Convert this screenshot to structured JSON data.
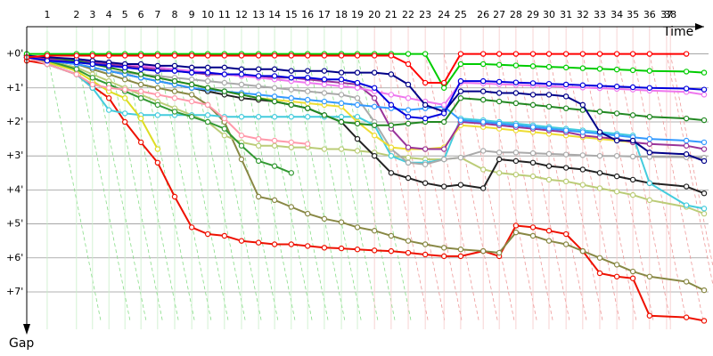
{
  "chart_data": {
    "type": "line",
    "x_label": "Time",
    "y_label": "Gap",
    "grid": true,
    "markers": true,
    "xlim": [
      0,
      20
    ],
    "ylim": [
      -0.8,
      8.1
    ],
    "y_inverted": true,
    "xticks": [
      {
        "value": 0.6,
        "label": "1"
      },
      {
        "value": 1.46,
        "label": "2"
      },
      {
        "value": 1.93,
        "label": "3"
      },
      {
        "value": 2.41,
        "label": "4"
      },
      {
        "value": 2.88,
        "label": "5"
      },
      {
        "value": 3.35,
        "label": "6"
      },
      {
        "value": 3.84,
        "label": "7"
      },
      {
        "value": 4.34,
        "label": "8"
      },
      {
        "value": 4.84,
        "label": "9"
      },
      {
        "value": 5.31,
        "label": "10"
      },
      {
        "value": 5.8,
        "label": "11"
      },
      {
        "value": 6.3,
        "label": "12"
      },
      {
        "value": 6.8,
        "label": "13"
      },
      {
        "value": 7.27,
        "label": "14"
      },
      {
        "value": 7.76,
        "label": "15"
      },
      {
        "value": 8.24,
        "label": "16"
      },
      {
        "value": 8.73,
        "label": "17"
      },
      {
        "value": 9.23,
        "label": "18"
      },
      {
        "value": 9.7,
        "label": "19"
      },
      {
        "value": 10.2,
        "label": "20"
      },
      {
        "value": 10.69,
        "label": "21"
      },
      {
        "value": 11.19,
        "label": "22"
      },
      {
        "value": 11.69,
        "label": "23"
      },
      {
        "value": 12.24,
        "label": "24"
      },
      {
        "value": 12.73,
        "label": "25"
      },
      {
        "value": 13.39,
        "label": "26"
      },
      {
        "value": 13.86,
        "label": "27"
      },
      {
        "value": 14.35,
        "label": "28"
      },
      {
        "value": 14.85,
        "label": "29"
      },
      {
        "value": 15.32,
        "label": "30"
      },
      {
        "value": 15.82,
        "label": "31"
      },
      {
        "value": 16.31,
        "label": "32"
      },
      {
        "value": 16.81,
        "label": "33"
      },
      {
        "value": 17.31,
        "label": "34"
      },
      {
        "value": 17.78,
        "label": "35"
      },
      {
        "value": 18.27,
        "label": "36"
      },
      {
        "value": 18.77,
        "label": "37"
      },
      {
        "value": 18.88,
        "label": "38"
      }
    ],
    "yticks": [
      {
        "value": 0,
        "label": "+0'"
      },
      {
        "value": 1,
        "label": "+1'"
      },
      {
        "value": 2,
        "label": "+2'"
      },
      {
        "value": 3,
        "label": "+3'"
      },
      {
        "value": 4,
        "label": "+4'"
      },
      {
        "value": 5,
        "label": "+5'"
      },
      {
        "value": 6,
        "label": "+6'"
      },
      {
        "value": 7,
        "label": "+7'"
      }
    ],
    "x": [
      0,
      0.6,
      1.46,
      1.93,
      2.41,
      2.88,
      3.35,
      3.84,
      4.34,
      4.84,
      5.31,
      5.8,
      6.3,
      6.8,
      7.27,
      7.76,
      8.24,
      8.73,
      9.23,
      9.7,
      10.2,
      10.69,
      11.19,
      11.69,
      12.24,
      12.73,
      13.39,
      13.86,
      14.35,
      14.85,
      15.32,
      15.82,
      16.31,
      16.81,
      17.31,
      17.78,
      18.27,
      19.35,
      19.87
    ],
    "series": [
      {
        "color": "#ee1100",
        "values": [
          0.2,
          0.3,
          0.6,
          0.95,
          1.3,
          2.0,
          2.6,
          3.2,
          4.2,
          5.1,
          5.3,
          5.35,
          5.5,
          5.55,
          5.6,
          5.6,
          5.65,
          5.7,
          5.72,
          5.75,
          5.78,
          5.8,
          5.85,
          5.9,
          5.95,
          5.95,
          5.8,
          5.95,
          5.05,
          5.1,
          5.2,
          5.3,
          5.8,
          6.45,
          6.55,
          6.6,
          7.7,
          7.75,
          7.85
        ]
      },
      {
        "color": "#888844",
        "values": [
          0.1,
          0.2,
          0.3,
          0.45,
          0.6,
          0.75,
          0.9,
          1.0,
          1.1,
          1.2,
          1.5,
          2.0,
          3.1,
          4.2,
          4.3,
          4.5,
          4.7,
          4.85,
          4.95,
          5.1,
          5.2,
          5.35,
          5.5,
          5.6,
          5.7,
          5.75,
          5.8,
          5.85,
          5.25,
          5.35,
          5.5,
          5.6,
          5.8,
          6.0,
          6.2,
          6.4,
          6.55,
          6.7,
          6.95
        ]
      },
      {
        "color": "#bbcc77",
        "values": [
          0.1,
          0.2,
          0.4,
          0.6,
          0.8,
          1.0,
          1.2,
          1.4,
          1.6,
          1.8,
          2.0,
          2.4,
          2.6,
          2.7,
          2.7,
          2.75,
          2.75,
          2.8,
          2.8,
          2.85,
          2.9,
          3.0,
          3.05,
          3.1,
          3.1,
          3.05,
          3.4,
          3.5,
          3.55,
          3.6,
          3.7,
          3.75,
          3.85,
          3.95,
          4.05,
          4.15,
          4.3,
          4.5,
          4.7
        ]
      },
      {
        "color": "#222222",
        "values": [
          0.1,
          0.2,
          0.3,
          0.4,
          0.5,
          0.6,
          0.7,
          0.8,
          0.9,
          1.0,
          1.1,
          1.2,
          1.3,
          1.35,
          1.4,
          1.5,
          1.6,
          1.8,
          2.0,
          2.5,
          3.0,
          3.5,
          3.65,
          3.8,
          3.9,
          3.85,
          3.95,
          3.1,
          3.15,
          3.2,
          3.3,
          3.35,
          3.4,
          3.5,
          3.6,
          3.7,
          3.8,
          3.9,
          4.1
        ]
      },
      {
        "color": "#222222",
        "values": [
          0.1,
          0.3,
          0.6,
          1.0,
          null,
          null,
          null,
          null,
          null,
          null,
          null,
          null,
          null,
          null,
          null,
          null,
          null,
          null,
          null,
          null,
          null,
          null,
          null,
          null,
          null,
          null,
          null,
          null,
          null,
          null,
          null,
          null,
          null,
          null,
          null,
          null,
          null,
          null,
          null
        ]
      },
      {
        "color": "#44ccdd",
        "values": [
          0.1,
          0.3,
          0.6,
          1.0,
          1.65,
          1.75,
          1.8,
          1.8,
          1.8,
          1.8,
          1.8,
          1.85,
          1.85,
          1.85,
          1.85,
          1.85,
          1.85,
          1.85,
          1.85,
          1.85,
          2.1,
          3.0,
          3.2,
          3.2,
          3.1,
          1.9,
          1.95,
          2.0,
          2.05,
          2.1,
          2.15,
          2.2,
          2.25,
          2.3,
          2.35,
          2.4,
          3.8,
          4.45,
          4.55
        ]
      },
      {
        "color": "#aaaaaa",
        "values": [
          0.05,
          0.15,
          0.3,
          0.4,
          0.5,
          0.55,
          0.6,
          0.65,
          0.7,
          0.75,
          0.8,
          0.85,
          0.9,
          0.95,
          1.0,
          1.05,
          1.1,
          1.15,
          1.2,
          1.3,
          2.0,
          2.8,
          3.2,
          3.25,
          3.1,
          3.05,
          2.85,
          2.9,
          2.9,
          2.92,
          2.94,
          2.96,
          2.98,
          3.0,
          3.0,
          3.02,
          3.03,
          3.04,
          3.05
        ]
      },
      {
        "color": "#eedd33",
        "values": [
          0.05,
          0.1,
          0.2,
          0.3,
          0.4,
          0.5,
          0.6,
          0.7,
          0.8,
          0.9,
          1.0,
          1.1,
          1.2,
          1.3,
          1.35,
          1.4,
          1.45,
          1.5,
          1.55,
          2.0,
          2.4,
          2.75,
          2.8,
          2.8,
          2.75,
          2.1,
          2.15,
          2.2,
          2.25,
          2.3,
          2.35,
          2.4,
          2.45,
          2.5,
          2.55,
          2.6,
          null,
          null,
          null
        ]
      },
      {
        "color": "#dddd22",
        "values": [
          0.1,
          0.25,
          0.5,
          0.8,
          1.1,
          1.3,
          1.9,
          2.8,
          null,
          null,
          null,
          null,
          null,
          null,
          null,
          null,
          null,
          null,
          null,
          null,
          null,
          null,
          null,
          null,
          null,
          null,
          null,
          null,
          null,
          null,
          null,
          null,
          null,
          null,
          null,
          null,
          null,
          null,
          null
        ]
      },
      {
        "color": "#339933",
        "values": [
          0.1,
          0.2,
          0.45,
          0.7,
          0.9,
          1.1,
          1.3,
          1.5,
          1.7,
          1.85,
          2.0,
          2.2,
          2.7,
          3.15,
          3.3,
          3.5,
          null,
          null,
          null,
          null,
          null,
          null,
          null,
          null,
          null,
          null,
          null,
          null,
          null,
          null,
          null,
          null,
          null,
          null,
          null,
          null,
          null,
          null,
          null
        ]
      },
      {
        "color": "#ff99aa",
        "values": [
          0.1,
          0.3,
          0.6,
          0.9,
          1.0,
          1.05,
          1.1,
          1.2,
          1.3,
          1.4,
          1.5,
          1.9,
          2.4,
          2.5,
          2.55,
          2.6,
          2.65,
          null,
          null,
          null,
          null,
          null,
          null,
          null,
          null,
          null,
          null,
          null,
          null,
          null,
          null,
          null,
          null,
          null,
          null,
          null,
          null,
          null,
          null
        ]
      },
      {
        "color": "#993399",
        "values": [
          0.1,
          0.15,
          0.2,
          0.25,
          0.3,
          0.35,
          0.4,
          0.45,
          0.5,
          0.55,
          0.6,
          0.6,
          0.65,
          0.65,
          0.7,
          0.7,
          0.75,
          0.8,
          0.85,
          0.9,
          1.3,
          2.2,
          2.75,
          2.8,
          2.8,
          2.0,
          2.05,
          2.1,
          2.15,
          2.2,
          2.25,
          2.3,
          2.4,
          2.45,
          2.5,
          2.6,
          2.65,
          2.7,
          2.8
        ]
      },
      {
        "color": "#3399ff",
        "values": [
          0.1,
          0.2,
          0.3,
          0.4,
          0.5,
          0.6,
          0.7,
          0.8,
          0.9,
          1.0,
          1.05,
          1.1,
          1.15,
          1.2,
          1.25,
          1.3,
          1.35,
          1.4,
          1.45,
          1.5,
          1.55,
          1.6,
          1.65,
          1.6,
          1.55,
          1.95,
          2.0,
          2.05,
          2.1,
          2.15,
          2.2,
          2.25,
          2.3,
          2.35,
          2.4,
          2.45,
          2.5,
          2.55,
          2.6
        ]
      },
      {
        "color": "#228822",
        "values": [
          0.05,
          0.1,
          0.2,
          0.3,
          0.4,
          0.5,
          0.6,
          0.7,
          0.8,
          0.9,
          1.0,
          1.1,
          1.2,
          1.3,
          1.4,
          1.5,
          1.6,
          1.8,
          2.0,
          2.05,
          2.1,
          2.1,
          2.05,
          2.0,
          2.0,
          1.3,
          1.35,
          1.4,
          1.45,
          1.5,
          1.55,
          1.6,
          1.65,
          1.7,
          1.75,
          1.8,
          1.85,
          1.9,
          1.95
        ]
      },
      {
        "color": "#ee77ee",
        "values": [
          0.05,
          0.1,
          0.15,
          0.2,
          0.25,
          0.3,
          0.35,
          0.4,
          0.45,
          0.5,
          0.55,
          0.6,
          0.65,
          0.7,
          0.75,
          0.8,
          0.85,
          0.9,
          0.95,
          1.0,
          1.1,
          1.2,
          1.3,
          1.4,
          1.5,
          0.85,
          0.87,
          0.89,
          0.91,
          0.93,
          0.95,
          0.97,
          0.99,
          1.01,
          1.03,
          1.05,
          1.08,
          1.12,
          1.2
        ]
      },
      {
        "color": "#000088",
        "values": [
          0.05,
          0.1,
          0.15,
          0.2,
          0.25,
          0.3,
          0.3,
          0.35,
          0.35,
          0.4,
          0.4,
          0.4,
          0.45,
          0.45,
          0.45,
          0.5,
          0.5,
          0.5,
          0.55,
          0.55,
          0.55,
          0.6,
          0.9,
          1.5,
          1.7,
          1.1,
          1.1,
          1.15,
          1.15,
          1.2,
          1.2,
          1.25,
          1.5,
          2.3,
          2.55,
          2.55,
          2.9,
          2.95,
          3.15
        ]
      },
      {
        "color": "#0000dd",
        "values": [
          0.1,
          0.2,
          0.25,
          0.3,
          0.35,
          0.4,
          0.45,
          0.5,
          0.5,
          0.55,
          0.55,
          0.6,
          0.6,
          0.65,
          0.65,
          0.7,
          0.7,
          0.75,
          0.75,
          0.85,
          1.0,
          1.5,
          1.85,
          1.9,
          1.75,
          0.8,
          0.8,
          0.82,
          0.84,
          0.86,
          0.88,
          0.9,
          0.92,
          0.94,
          0.96,
          0.98,
          1.0,
          1.02,
          1.05
        ]
      },
      {
        "color": "#00cc00",
        "values": [
          0,
          0,
          0,
          0,
          0,
          0,
          0,
          0,
          0,
          0,
          0,
          0,
          0,
          0,
          0,
          0,
          0,
          0,
          0,
          0,
          0,
          0,
          0,
          0,
          1.0,
          0.3,
          0.3,
          0.32,
          0.34,
          0.36,
          0.38,
          0.4,
          0.42,
          0.44,
          0.46,
          0.48,
          0.5,
          0.52,
          0.55
        ]
      },
      {
        "color": "#ff0000",
        "values": [
          0.1,
          0.05,
          0.05,
          0.05,
          0.05,
          0.05,
          0.05,
          0.05,
          0.05,
          0.05,
          0.05,
          0.05,
          0.05,
          0.05,
          0.05,
          0.05,
          0.05,
          0.05,
          0.05,
          0.05,
          0.05,
          0.05,
          0.3,
          0.85,
          0.85,
          0,
          0,
          0,
          0,
          0,
          0,
          0,
          0,
          0,
          0,
          0,
          0,
          0,
          null
        ]
      }
    ]
  }
}
